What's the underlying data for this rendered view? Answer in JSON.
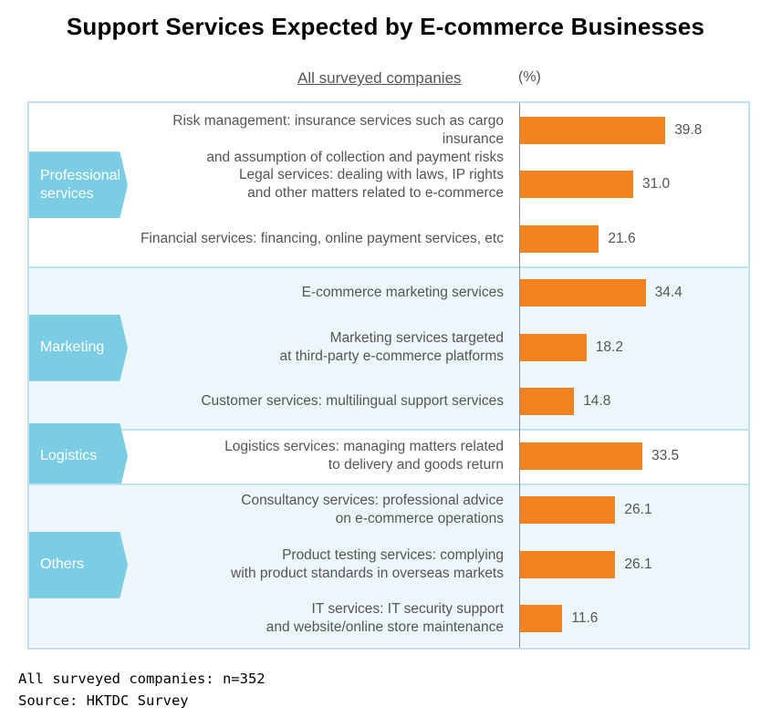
{
  "chart_data": {
    "type": "bar",
    "orientation": "horizontal",
    "title": "Support Services Expected by E-commerce Businesses",
    "series_label": "All surveyed companies",
    "unit": "(%)",
    "groups": [
      {
        "name": "Professional\nservices",
        "rows": [
          {
            "label": "Risk management: insurance services such as cargo insurance\nand assumption of collection and payment risks",
            "value": 39.8
          },
          {
            "label": "Legal services: dealing with laws, IP rights\nand other matters related to e-commerce",
            "value": 31.0
          },
          {
            "label": "Financial services: financing, online payment services, etc",
            "value": 21.6
          }
        ]
      },
      {
        "name": "Marketing",
        "rows": [
          {
            "label": "E-commerce marketing services",
            "value": 34.4
          },
          {
            "label": "Marketing services targeted\nat third-party e-commerce platforms",
            "value": 18.2
          },
          {
            "label": "Customer services: multilingual support services",
            "value": 14.8
          }
        ]
      },
      {
        "name": "Logistics",
        "rows": [
          {
            "label": "Logistics services: managing matters related\nto delivery and goods return",
            "value": 33.5
          }
        ]
      },
      {
        "name": "Others",
        "rows": [
          {
            "label": "Consultancy services: professional advice\non e-commerce operations",
            "value": 26.1
          },
          {
            "label": "Product testing services: complying\nwith product standards in overseas markets",
            "value": 26.1
          },
          {
            "label": "IT services: IT security support\nand website/online store maintenance",
            "value": 11.6
          }
        ]
      }
    ],
    "footnotes": [
      "All surveyed companies: n=352",
      "Source: HKTDC Survey"
    ]
  },
  "colors": {
    "bar": "#f38220",
    "tag": "#7acde3",
    "band_shaded": "#edf6fb",
    "band_plain": "#ffffff",
    "border": "#bfe2f0"
  }
}
